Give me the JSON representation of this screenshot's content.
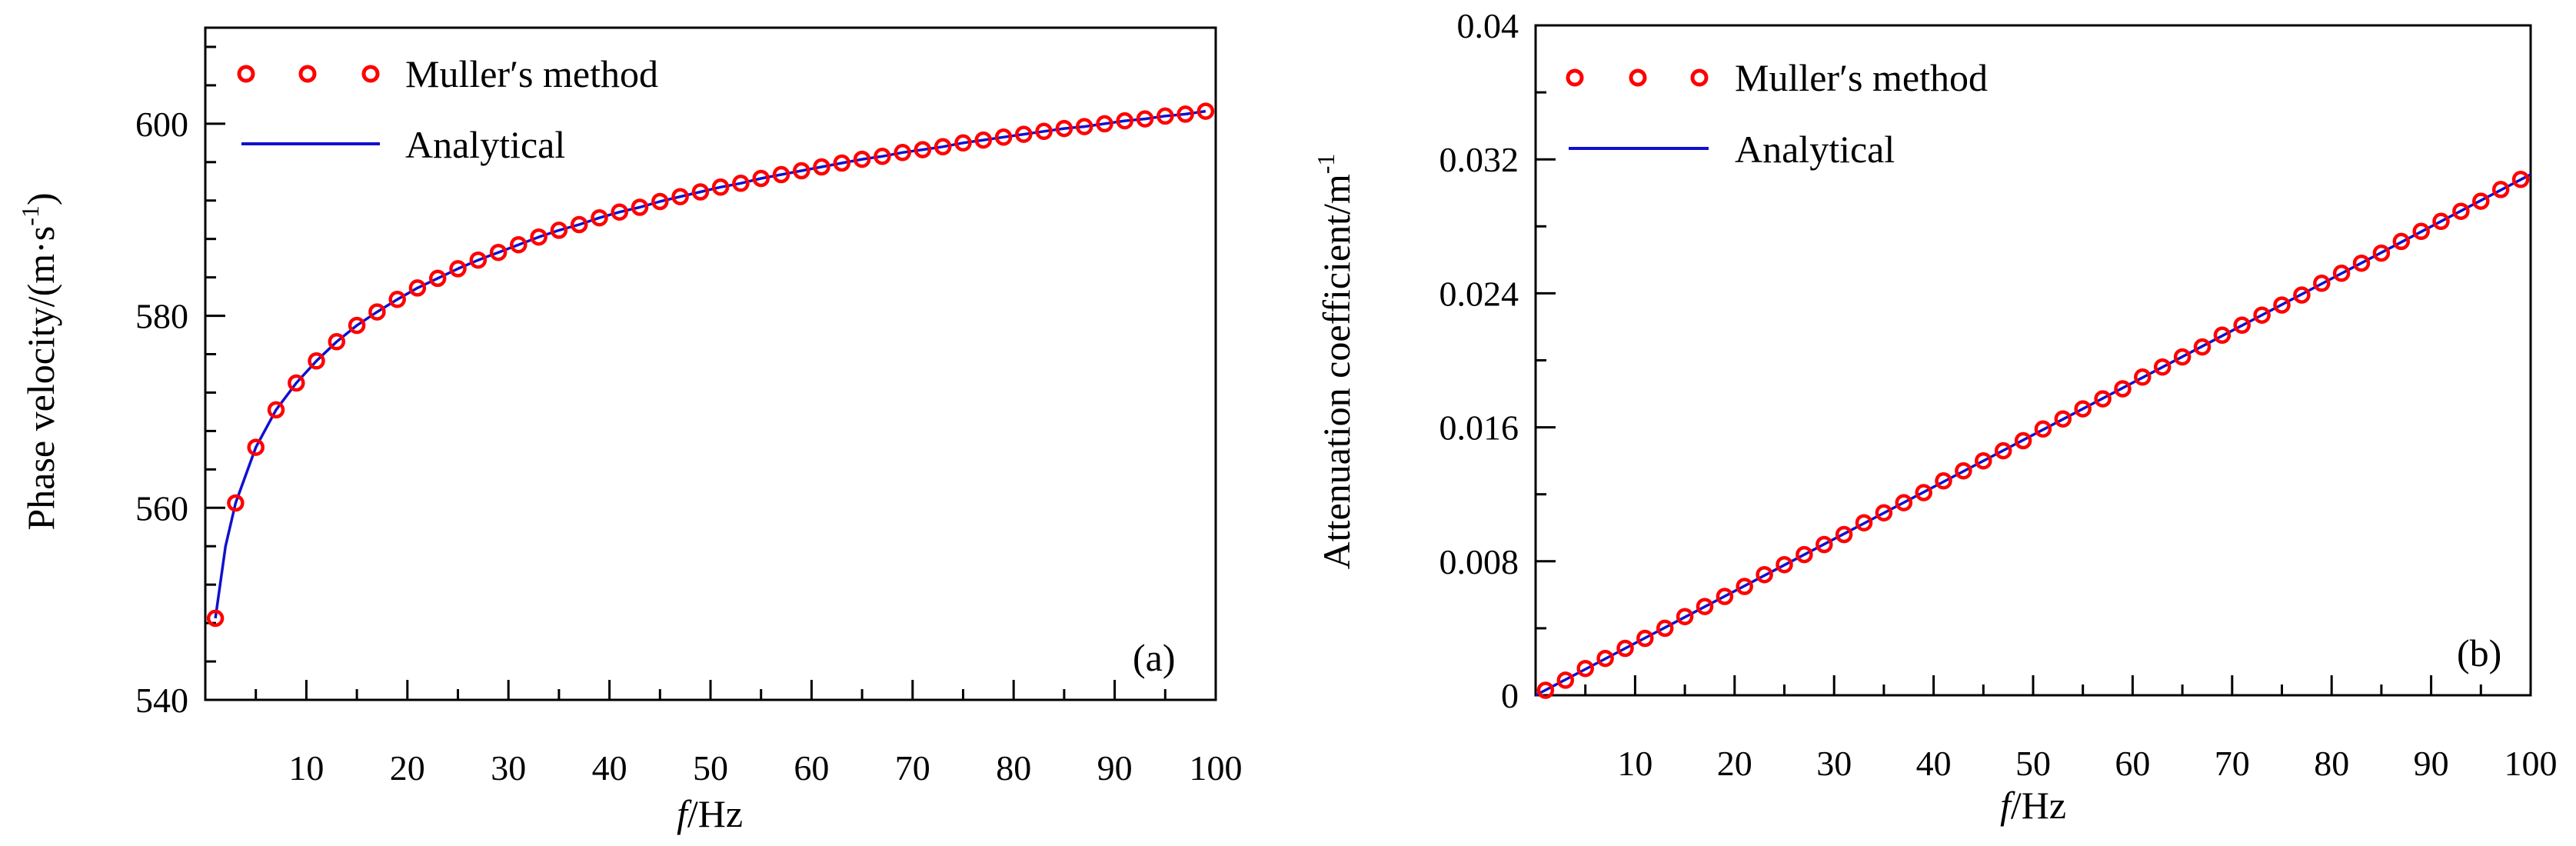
{
  "chart_data": [
    {
      "type": "line",
      "panel_label": "(a)",
      "xlabel_symbol": "f",
      "xlabel_unit": "/Hz",
      "ylabel_main": "Phase velocity/(m·s",
      "ylabel_sup": "-1",
      "ylabel_close": ")",
      "xlim": [
        0,
        100
      ],
      "ylim": [
        540,
        610
      ],
      "xticks": [
        10,
        20,
        30,
        40,
        50,
        60,
        70,
        80,
        90,
        100
      ],
      "xtick_labels": [
        "10",
        "20",
        "30",
        "40",
        "50",
        "60",
        "70",
        "80",
        "90",
        "100"
      ],
      "yticks": [
        540,
        560,
        580,
        600
      ],
      "ytick_labels": [
        "540",
        "560",
        "580",
        "600"
      ],
      "legend": [
        "Muller′s method",
        "Analytical"
      ],
      "legend_position": "top-left",
      "grid": false,
      "series": [
        {
          "name": "Analytical",
          "kind": "line",
          "color": "#1010d0",
          "x": [
            1,
            2,
            3,
            5,
            7,
            9,
            11,
            13,
            15,
            17,
            19,
            21,
            23,
            25,
            27,
            29,
            31,
            33,
            35,
            37,
            39,
            41,
            43,
            45,
            47,
            49,
            51,
            53,
            55,
            57,
            59,
            61,
            63,
            65,
            67,
            69,
            71,
            73,
            75,
            77,
            79,
            81,
            83,
            85,
            87,
            89,
            91,
            93,
            95,
            97,
            99
          ],
          "y": [
            548.5,
            556.0,
            560.5,
            566.3,
            570.2,
            573.0,
            575.3,
            577.3,
            579.0,
            580.4,
            581.7,
            582.9,
            583.9,
            584.9,
            585.8,
            586.6,
            587.4,
            588.2,
            588.9,
            589.5,
            590.2,
            590.8,
            591.3,
            591.9,
            592.4,
            592.9,
            593.4,
            593.8,
            594.3,
            594.7,
            595.1,
            595.5,
            595.9,
            596.3,
            596.6,
            597.0,
            597.3,
            597.6,
            598.0,
            598.3,
            598.6,
            598.9,
            599.2,
            599.5,
            599.7,
            600.0,
            600.3,
            600.5,
            600.8,
            601.0,
            601.3
          ]
        },
        {
          "name": "Muller′s method",
          "kind": "markers",
          "color": "#ff0000",
          "x": [
            1,
            3,
            5,
            7,
            9,
            11,
            13,
            15,
            17,
            19,
            21,
            23,
            25,
            27,
            29,
            31,
            33,
            35,
            37,
            39,
            41,
            43,
            45,
            47,
            49,
            51,
            53,
            55,
            57,
            59,
            61,
            63,
            65,
            67,
            69,
            71,
            73,
            75,
            77,
            79,
            81,
            83,
            85,
            87,
            89,
            91,
            93,
            95,
            97,
            99
          ],
          "y": [
            548.5,
            560.5,
            566.3,
            570.2,
            573.0,
            575.3,
            577.3,
            579.0,
            580.4,
            581.7,
            582.9,
            583.9,
            584.9,
            585.8,
            586.6,
            587.4,
            588.2,
            588.9,
            589.5,
            590.2,
            590.8,
            591.3,
            591.9,
            592.4,
            592.9,
            593.4,
            593.8,
            594.3,
            594.7,
            595.1,
            595.5,
            595.9,
            596.3,
            596.6,
            597.0,
            597.3,
            597.6,
            598.0,
            598.3,
            598.6,
            598.9,
            599.2,
            599.5,
            599.7,
            600.0,
            600.3,
            600.5,
            600.8,
            601.0,
            601.3
          ]
        }
      ]
    },
    {
      "type": "line",
      "panel_label": "(b)",
      "xlabel_symbol": "f",
      "xlabel_unit": "/Hz",
      "ylabel_main": "Attenuation coefficient/m",
      "ylabel_sup": "-1",
      "ylabel_close": "",
      "xlim": [
        0,
        100
      ],
      "ylim": [
        0,
        0.04
      ],
      "xticks": [
        10,
        20,
        30,
        40,
        50,
        60,
        70,
        80,
        90,
        100
      ],
      "xtick_labels": [
        "10",
        "20",
        "30",
        "40",
        "50",
        "60",
        "70",
        "80",
        "90",
        "100"
      ],
      "yticks": [
        0,
        0.008,
        0.016,
        0.024,
        0.032,
        0.04
      ],
      "ytick_labels": [
        "0",
        "0.008",
        "0.016",
        "0.024",
        "0.032",
        "0.04"
      ],
      "legend": [
        "Muller′s method",
        "Analytical"
      ],
      "legend_position": "top-left",
      "grid": false,
      "series": [
        {
          "name": "Analytical",
          "kind": "line",
          "color": "#1010d0",
          "x": [
            0,
            100
          ],
          "y": [
            0.0,
            0.0311
          ]
        },
        {
          "name": "Muller′s method",
          "kind": "markers",
          "color": "#ff0000",
          "x": [
            1,
            3,
            5,
            7,
            9,
            11,
            13,
            15,
            17,
            19,
            21,
            23,
            25,
            27,
            29,
            31,
            33,
            35,
            37,
            39,
            41,
            43,
            45,
            47,
            49,
            51,
            53,
            55,
            57,
            59,
            61,
            63,
            65,
            67,
            69,
            71,
            73,
            75,
            77,
            79,
            81,
            83,
            85,
            87,
            89,
            91,
            93,
            95,
            97,
            99
          ],
          "y": [
            0.0003,
            0.0009,
            0.0016,
            0.0022,
            0.0028,
            0.0034,
            0.004,
            0.0047,
            0.0053,
            0.0059,
            0.0065,
            0.0072,
            0.0078,
            0.0084,
            0.009,
            0.0096,
            0.0103,
            0.0109,
            0.0115,
            0.0121,
            0.0128,
            0.0134,
            0.014,
            0.0146,
            0.0152,
            0.0159,
            0.0165,
            0.0171,
            0.0177,
            0.0183,
            0.019,
            0.0196,
            0.0202,
            0.0208,
            0.0215,
            0.0221,
            0.0227,
            0.0233,
            0.0239,
            0.0246,
            0.0252,
            0.0258,
            0.0264,
            0.0271,
            0.0277,
            0.0283,
            0.0289,
            0.0295,
            0.0302,
            0.0308
          ]
        }
      ]
    }
  ]
}
